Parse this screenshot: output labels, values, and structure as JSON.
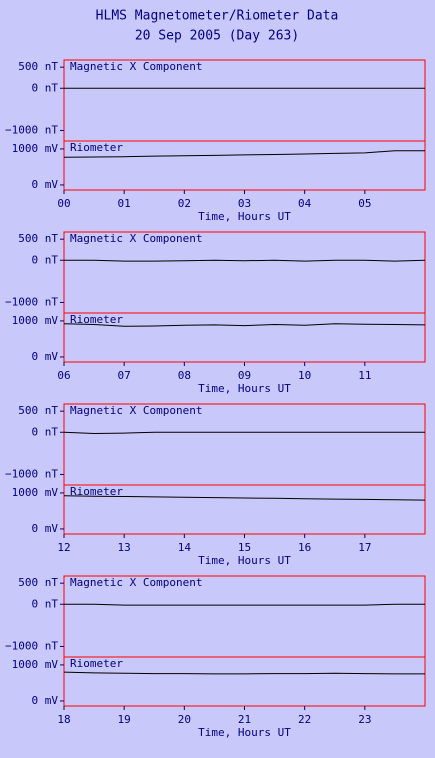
{
  "header": {
    "title": "HLMS Magnetometer/Riometer Data",
    "subtitle": "20 Sep 2005 (Day 263)"
  },
  "chart_data": [
    {
      "type": "line",
      "title": "Magnetic X Component",
      "x": [
        0,
        0.5,
        1,
        1.5,
        2,
        2.5,
        3,
        3.5,
        4,
        4.5,
        5,
        5.5,
        6
      ],
      "values": [
        0,
        0,
        0,
        0,
        0,
        0,
        0,
        0,
        0,
        0,
        0,
        0,
        0
      ],
      "color": "#000000",
      "xlim": [
        0,
        6
      ],
      "ylim": [
        -1250,
        670
      ],
      "yticks": [
        {
          "value": 500,
          "label": "500 nT"
        },
        {
          "value": 0,
          "label": "0 nT"
        },
        {
          "value": -1000,
          "label": "−1000 nT"
        }
      ]
    },
    {
      "type": "line",
      "title": "Riometer",
      "x": [
        0,
        0.5,
        1,
        1.5,
        2,
        2.5,
        3,
        3.5,
        4,
        4.5,
        5,
        5.5,
        6
      ],
      "values": [
        770,
        775,
        785,
        800,
        810,
        820,
        835,
        845,
        860,
        875,
        890,
        950,
        950
      ],
      "color": "#000000",
      "xlim": [
        0,
        6
      ],
      "ylim": [
        -140,
        1220
      ],
      "yticks": [
        {
          "value": 1000,
          "label": "1000 mV"
        },
        {
          "value": 0,
          "label": "0 mV"
        }
      ],
      "xlabel": "Time, Hours UT",
      "xticks": [
        {
          "value": 0,
          "label": "00"
        },
        {
          "value": 1,
          "label": "01"
        },
        {
          "value": 2,
          "label": "02"
        },
        {
          "value": 3,
          "label": "03"
        },
        {
          "value": 4,
          "label": "04"
        },
        {
          "value": 5,
          "label": "05"
        }
      ]
    },
    {
      "type": "line",
      "title": "Magnetic X Component",
      "x": [
        6,
        6.5,
        7,
        7.5,
        8,
        8.5,
        9,
        9.5,
        10,
        10.5,
        11,
        11.5,
        12
      ],
      "values": [
        0,
        0,
        -20,
        -20,
        -10,
        0,
        -10,
        0,
        -20,
        0,
        0,
        -20,
        0
      ],
      "color": "#000000",
      "xlim": [
        6,
        12
      ],
      "ylim": [
        -1250,
        670
      ],
      "yticks": [
        {
          "value": 500,
          "label": "500 nT"
        },
        {
          "value": 0,
          "label": "0 nT"
        },
        {
          "value": -1000,
          "label": "−1000 nT"
        }
      ]
    },
    {
      "type": "line",
      "title": "Riometer",
      "x": [
        6,
        6.5,
        7,
        7.5,
        8,
        8.5,
        9,
        9.5,
        10,
        10.5,
        11,
        11.5,
        12
      ],
      "values": [
        920,
        900,
        850,
        860,
        880,
        890,
        870,
        900,
        880,
        920,
        910,
        900,
        890
      ],
      "color": "#000000",
      "xlim": [
        6,
        12
      ],
      "ylim": [
        -140,
        1220
      ],
      "yticks": [
        {
          "value": 1000,
          "label": "1000 mV"
        },
        {
          "value": 0,
          "label": "0 mV"
        }
      ],
      "xlabel": "Time, Hours UT",
      "xticks": [
        {
          "value": 6,
          "label": "06"
        },
        {
          "value": 7,
          "label": "07"
        },
        {
          "value": 8,
          "label": "08"
        },
        {
          "value": 9,
          "label": "09"
        },
        10,
        11
      ]
    },
    {
      "type": "line",
      "title": "Magnetic X Component",
      "x": [
        12,
        12.5,
        13,
        13.5,
        14,
        14.5,
        15,
        15.5,
        16,
        16.5,
        17,
        17.5,
        18
      ],
      "values": [
        0,
        -30,
        -20,
        0,
        0,
        0,
        0,
        0,
        0,
        0,
        0,
        0,
        0
      ],
      "color": "#000000",
      "xlim": [
        12,
        18
      ],
      "ylim": [
        -1250,
        670
      ],
      "yticks": [
        {
          "value": 500,
          "label": "500 nT"
        },
        {
          "value": 0,
          "label": "0 nT"
        },
        {
          "value": -1000,
          "label": "−1000 nT"
        }
      ]
    },
    {
      "type": "line",
      "title": "Riometer",
      "x": [
        12,
        12.5,
        13,
        13.5,
        14,
        14.5,
        15,
        15.5,
        16,
        16.5,
        17,
        17.5,
        18
      ],
      "values": [
        920,
        910,
        900,
        890,
        880,
        870,
        860,
        850,
        840,
        830,
        820,
        810,
        800
      ],
      "color": "#000000",
      "xlim": [
        12,
        18
      ],
      "ylim": [
        -140,
        1220
      ],
      "yticks": [
        {
          "value": 1000,
          "label": "1000 mV"
        },
        {
          "value": 0,
          "label": "0 mV"
        }
      ],
      "xlabel": "Time, Hours UT",
      "xticks": [
        12,
        13,
        14,
        15,
        16,
        17
      ]
    },
    {
      "type": "line",
      "title": "Magnetic X Component",
      "x": [
        18,
        18.5,
        19,
        19.5,
        20,
        20.5,
        21,
        21.5,
        22,
        22.5,
        23,
        23.5,
        24
      ],
      "values": [
        0,
        0,
        -20,
        -20,
        -20,
        -20,
        -20,
        -20,
        -20,
        -20,
        -20,
        0,
        0
      ],
      "color": "#000000",
      "xlim": [
        18,
        24
      ],
      "ylim": [
        -1250,
        670
      ],
      "yticks": [
        {
          "value": 500,
          "label": "500 nT"
        },
        {
          "value": 0,
          "label": "0 nT"
        },
        {
          "value": -1000,
          "label": "−1000 nT"
        }
      ]
    },
    {
      "type": "line",
      "title": "Riometer",
      "x": [
        18,
        18.5,
        19,
        19.5,
        20,
        20.5,
        21,
        21.5,
        22,
        22.5,
        23,
        23.5,
        24
      ],
      "values": [
        800,
        780,
        770,
        760,
        760,
        750,
        750,
        760,
        760,
        770,
        760,
        750,
        750
      ],
      "color": "#000000",
      "xlim": [
        18,
        24
      ],
      "ylim": [
        -140,
        1220
      ],
      "yticks": [
        {
          "value": 1000,
          "label": "1000 mV"
        },
        {
          "value": 0,
          "label": "0 mV"
        }
      ],
      "xlabel": "Time, Hours UT",
      "xticks": [
        18,
        19,
        20,
        21,
        22,
        23
      ]
    }
  ]
}
